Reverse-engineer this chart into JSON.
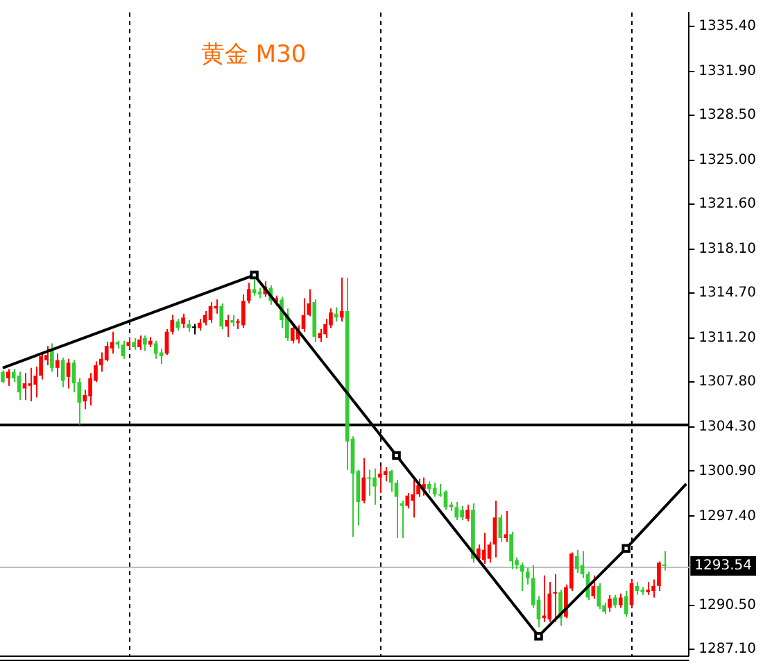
{
  "chart_data": {
    "type": "candlestick",
    "title": "黄金 M30",
    "categories": [
      null,
      null,
      null,
      null,
      null,
      null,
      null,
      null,
      null,
      null,
      null,
      null,
      null,
      null,
      null,
      null,
      null,
      null,
      null,
      null,
      null,
      null,
      null,
      null,
      null,
      null,
      null,
      null,
      null,
      null,
      null,
      null,
      null,
      null,
      null,
      null,
      null,
      null,
      null,
      null,
      null,
      null,
      null,
      null,
      null,
      null,
      null,
      null,
      null,
      null,
      null,
      null,
      null,
      null,
      null,
      null,
      null,
      null,
      null,
      null,
      null,
      null,
      null,
      null,
      null,
      null,
      null,
      null,
      null,
      null,
      null,
      null,
      null,
      null,
      null,
      null,
      null,
      null,
      null,
      null,
      null,
      null,
      null,
      null,
      null,
      null,
      null,
      null,
      null,
      null,
      null,
      null,
      null,
      null,
      null,
      null,
      null,
      null,
      null,
      null,
      null,
      null,
      null,
      null,
      null,
      null,
      null,
      null,
      null,
      null,
      null,
      null,
      null,
      null,
      null,
      null,
      null,
      null,
      null,
      null,
      null,
      null,
      null,
      null,
      null,
      null
    ],
    "ohlc": [
      [
        1308.6,
        1308.7,
        1307.7,
        1307.8
      ],
      [
        1308.1,
        1308.8,
        1307.5,
        1308.6
      ],
      [
        1308.6,
        1308.8,
        1307.8,
        1308.1
      ],
      [
        1308.3,
        1308.6,
        1306.4,
        1307.0
      ],
      [
        1307.3,
        1308.5,
        1306.4,
        1307.7
      ],
      [
        1307.5,
        1308.9,
        1306.3,
        1307.7
      ],
      [
        1307.6,
        1309.0,
        1306.6,
        1308.3
      ],
      [
        1308.3,
        1310.1,
        1308.0,
        1309.8
      ],
      [
        1309.5,
        1310.6,
        1309.1,
        1309.9
      ],
      [
        1310.2,
        1310.8,
        1308.6,
        1308.9
      ],
      [
        1308.9,
        1310.0,
        1308.2,
        1309.5
      ],
      [
        1309.5,
        1309.7,
        1307.4,
        1307.9
      ],
      [
        1308.2,
        1309.6,
        1307.3,
        1309.3
      ],
      [
        1309.3,
        1309.5,
        1307.0,
        1307.7
      ],
      [
        1307.8,
        1308.1,
        1304.5,
        1306.2
      ],
      [
        1306.3,
        1307.2,
        1305.7,
        1306.8
      ],
      [
        1306.7,
        1308.5,
        1306.0,
        1308.1
      ],
      [
        1307.9,
        1309.4,
        1307.8,
        1309.1
      ],
      [
        1309.1,
        1310.1,
        1308.6,
        1309.6
      ],
      [
        1309.5,
        1310.9,
        1309.4,
        1310.6
      ],
      [
        1310.4,
        1311.7,
        1310.0,
        1310.9
      ],
      [
        1310.9,
        1311.0,
        1310.4,
        1310.7
      ],
      [
        1310.7,
        1311.0,
        1309.6,
        1309.8
      ],
      [
        1310.6,
        1311.2,
        1310.4,
        1310.9
      ],
      [
        1310.9,
        1311.2,
        1310.3,
        1310.5
      ],
      [
        1310.5,
        1311.4,
        1310.3,
        1311.1
      ],
      [
        1311.2,
        1311.4,
        1310.2,
        1310.7
      ],
      [
        1310.7,
        1311.3,
        1310.5,
        1311.0
      ],
      [
        1310.8,
        1311.0,
        1309.6,
        1310.0
      ],
      [
        1310.1,
        1310.4,
        1309.2,
        1309.8
      ],
      [
        1310.0,
        1311.9,
        1309.9,
        1311.7
      ],
      [
        1311.7,
        1313.0,
        1311.5,
        1312.6
      ],
      [
        1312.5,
        1312.7,
        1311.8,
        1312.0
      ],
      [
        1312.3,
        1313.1,
        1312.0,
        1312.8
      ],
      [
        1312.3,
        1312.6,
        1311.7,
        1312.0
      ],
      [
        1312.0,
        1312.3,
        1311.5,
        1312.0
      ],
      [
        1312.0,
        1312.7,
        1311.8,
        1312.4
      ],
      [
        1312.4,
        1313.3,
        1312.2,
        1313.0
      ],
      [
        1312.6,
        1314.0,
        1312.4,
        1313.7
      ],
      [
        1313.5,
        1314.2,
        1313.1,
        1313.7
      ],
      [
        1313.7,
        1313.9,
        1311.9,
        1312.1
      ],
      [
        1312.1,
        1313.0,
        1311.3,
        1312.6
      ],
      [
        1312.6,
        1313.0,
        1312.1,
        1312.4
      ],
      [
        1312.4,
        1312.7,
        1311.9,
        1312.5
      ],
      [
        1312.2,
        1314.6,
        1312.0,
        1314.1
      ],
      [
        1314.1,
        1315.5,
        1313.9,
        1315.0
      ],
      [
        1315.0,
        1315.8,
        1314.5,
        1314.7
      ],
      [
        1314.8,
        1315.1,
        1314.3,
        1314.6
      ],
      [
        1314.6,
        1315.6,
        1314.4,
        1315.2
      ],
      [
        1315.1,
        1315.3,
        1313.8,
        1314.1
      ],
      [
        1314.0,
        1314.5,
        1313.7,
        1314.3
      ],
      [
        1314.2,
        1314.4,
        1312.0,
        1312.6
      ],
      [
        1313.1,
        1313.5,
        1311.0,
        1311.2
      ],
      [
        1311.0,
        1312.3,
        1310.8,
        1312.0
      ],
      [
        1311.1,
        1312.2,
        1310.8,
        1311.8
      ],
      [
        1311.9,
        1314.3,
        1311.7,
        1313.0
      ],
      [
        1313.0,
        1315.0,
        1312.9,
        1313.9
      ],
      [
        1314.0,
        1314.2,
        1310.9,
        1311.3
      ],
      [
        1311.2,
        1311.9,
        1310.9,
        1311.6
      ],
      [
        1311.5,
        1312.7,
        1311.2,
        1312.3
      ],
      [
        1312.2,
        1313.5,
        1312.0,
        1313.2
      ],
      [
        1313.1,
        1313.6,
        1312.5,
        1312.8
      ],
      [
        1312.8,
        1315.9,
        1312.5,
        1313.3
      ],
      [
        1313.3,
        1315.9,
        1301.0,
        1303.2
      ],
      [
        1303.4,
        1303.6,
        1295.8,
        1300.7
      ],
      [
        1300.9,
        1301.0,
        1296.7,
        1298.5
      ],
      [
        1298.6,
        1301.9,
        1298.4,
        1300.4
      ],
      [
        1300.4,
        1301.0,
        1299.0,
        1300.3
      ],
      [
        1300.4,
        1301.1,
        1298.3,
        1299.7
      ],
      [
        1300.4,
        1301.3,
        1299.2,
        1300.7
      ],
      [
        1300.6,
        1301.2,
        1300.1,
        1300.9
      ],
      [
        1300.9,
        1301.0,
        1299.3,
        1300.0
      ],
      [
        1300.0,
        1300.2,
        1295.7,
        1298.9
      ],
      [
        1298.4,
        1298.6,
        1295.7,
        1298.2
      ],
      [
        1298.2,
        1299.2,
        1298.0,
        1299.0
      ],
      [
        1298.6,
        1300.2,
        1297.3,
        1299.1
      ],
      [
        1299.1,
        1300.3,
        1298.9,
        1299.8
      ],
      [
        1299.5,
        1300.4,
        1299.0,
        1299.9
      ],
      [
        1299.9,
        1300.1,
        1299.2,
        1299.5
      ],
      [
        1299.6,
        1300.0,
        1298.9,
        1299.1
      ],
      [
        1299.1,
        1299.9,
        1298.9,
        1299.0
      ],
      [
        1299.3,
        1299.4,
        1297.9,
        1298.1
      ],
      [
        1298.3,
        1298.5,
        1297.8,
        1298.1
      ],
      [
        1298.1,
        1298.5,
        1297.1,
        1297.3
      ],
      [
        1297.9,
        1298.2,
        1297.1,
        1297.3
      ],
      [
        1297.2,
        1298.3,
        1297.0,
        1297.9
      ],
      [
        1297.9,
        1298.4,
        1293.8,
        1294.1
      ],
      [
        1294.1,
        1295.2,
        1293.8,
        1294.9
      ],
      [
        1294.0,
        1296.1,
        1293.7,
        1294.8
      ],
      [
        1294.1,
        1295.4,
        1293.8,
        1295.2
      ],
      [
        1295.2,
        1298.6,
        1294.2,
        1297.3
      ],
      [
        1297.3,
        1297.5,
        1295.4,
        1295.7
      ],
      [
        1295.7,
        1297.8,
        1295.4,
        1296.0
      ],
      [
        1296.0,
        1296.2,
        1293.3,
        1293.9
      ],
      [
        1294.0,
        1294.2,
        1293.3,
        1293.6
      ],
      [
        1293.6,
        1293.8,
        1291.6,
        1293.1
      ],
      [
        1293.1,
        1293.4,
        1292.1,
        1292.6
      ],
      [
        1292.6,
        1293.6,
        1290.3,
        1290.5
      ],
      [
        1290.9,
        1291.2,
        1288.8,
        1289.4
      ],
      [
        1289.5,
        1292.8,
        1289.2,
        1289.7
      ],
      [
        1289.4,
        1292.3,
        1289.2,
        1291.4
      ],
      [
        1291.4,
        1292.9,
        1289.2,
        1291.5
      ],
      [
        1291.5,
        1291.7,
        1288.9,
        1289.5
      ],
      [
        1289.6,
        1292.1,
        1289.5,
        1291.9
      ],
      [
        1291.8,
        1294.6,
        1291.6,
        1294.5
      ],
      [
        1294.3,
        1294.8,
        1293.0,
        1293.3
      ],
      [
        1293.6,
        1294.7,
        1292.6,
        1292.9
      ],
      [
        1292.9,
        1293.1,
        1290.9,
        1291.1
      ],
      [
        1291.2,
        1292.8,
        1291.0,
        1292.0
      ],
      [
        1292.0,
        1292.2,
        1290.2,
        1290.4
      ],
      [
        1290.5,
        1290.7,
        1289.8,
        1290.0
      ],
      [
        1290.3,
        1291.3,
        1290.0,
        1291.0
      ],
      [
        1291.1,
        1291.3,
        1290.3,
        1290.5
      ],
      [
        1290.5,
        1291.4,
        1290.3,
        1291.1
      ],
      [
        1291.2,
        1291.6,
        1289.6,
        1289.8
      ],
      [
        1290.5,
        1292.5,
        1290.3,
        1292.2
      ],
      [
        1292.0,
        1292.3,
        1291.3,
        1291.6
      ],
      [
        1291.7,
        1291.9,
        1291.3,
        1291.5
      ],
      [
        1291.5,
        1292.3,
        1291.3,
        1291.7
      ],
      [
        1291.6,
        1292.5,
        1291.1,
        1292.0
      ],
      [
        1292.0,
        1293.9,
        1291.6,
        1293.8
      ],
      [
        1293.6,
        1294.7,
        1293.2,
        1293.54
      ],
      null,
      null,
      null,
      null
    ],
    "colors": [
      "#32cd32",
      "#ff0000",
      "#32cd32",
      "#32cd32",
      "#ff0000",
      "#ff0000",
      "#ff0000",
      "#ff0000",
      "#ff0000",
      "#32cd32",
      "#ff0000",
      "#32cd32",
      "#ff0000",
      "#32cd32",
      "#32cd32",
      "#ff0000",
      "#ff0000",
      "#ff0000",
      "#ff0000",
      "#ff0000",
      "#ff0000",
      "#32cd32",
      "#32cd32",
      "#ff0000",
      "#32cd32",
      "#ff0000",
      "#32cd32",
      "#ff0000",
      "#32cd32",
      "#32cd32",
      "#ff0000",
      "#ff0000",
      "#32cd32",
      "#ff0000",
      "#32cd32",
      "#000000",
      "#ff0000",
      "#ff0000",
      "#ff0000",
      "#ff0000",
      "#32cd32",
      "#ff0000",
      "#32cd32",
      "#ff0000",
      "#ff0000",
      "#ff0000",
      "#32cd32",
      "#32cd32",
      "#ff0000",
      "#32cd32",
      "#ff0000",
      "#32cd32",
      "#32cd32",
      "#ff0000",
      "#ff0000",
      "#ff0000",
      "#ff0000",
      "#32cd32",
      "#ff0000",
      "#ff0000",
      "#ff0000",
      "#32cd32",
      "#ff0000",
      "#32cd32",
      "#32cd32",
      "#32cd32",
      "#ff0000",
      "#32cd32",
      "#32cd32",
      "#ff0000",
      "#ff0000",
      "#32cd32",
      "#32cd32",
      "#32cd32",
      "#ff0000",
      "#ff0000",
      "#ff0000",
      "#ff0000",
      "#32cd32",
      "#32cd32",
      "#32cd32",
      "#32cd32",
      "#32cd32",
      "#32cd32",
      "#32cd32",
      "#ff0000",
      "#32cd32",
      "#ff0000",
      "#ff0000",
      "#ff0000",
      "#ff0000",
      "#32cd32",
      "#ff0000",
      "#32cd32",
      "#32cd32",
      "#32cd32",
      "#32cd32",
      "#32cd32",
      "#32cd32",
      "#ff0000",
      "#ff0000",
      "#ff0000",
      "#32cd32",
      "#ff0000",
      "#ff0000",
      "#32cd32",
      "#32cd32",
      "#32cd32",
      "#ff0000",
      "#32cd32",
      "#32cd32",
      "#ff0000",
      "#32cd32",
      "#ff0000",
      "#32cd32",
      "#ff0000",
      "#32cd32",
      "#32cd32",
      "#ff0000",
      "#ff0000",
      "#ff0000",
      "#32cd32",
      null,
      null,
      null,
      null
    ],
    "series": [
      {
        "type": "line",
        "color": "#000000",
        "marker": "square",
        "values": [
          1308.9,
          null,
          null,
          null,
          null,
          null,
          null,
          null,
          null,
          null,
          null,
          null,
          null,
          null,
          null,
          null,
          null,
          null,
          null,
          null,
          null,
          null,
          null,
          null,
          null,
          null,
          null,
          null,
          null,
          null,
          null,
          null,
          null,
          null,
          null,
          null,
          null,
          null,
          null,
          null,
          null,
          null,
          null,
          null,
          null,
          null,
          1316.1,
          null,
          null,
          null,
          null,
          null,
          null,
          null,
          null,
          null,
          null,
          null,
          null,
          null,
          null,
          null,
          null,
          null,
          null,
          null,
          null,
          null,
          null,
          null,
          null,
          null,
          1302.1,
          null,
          null,
          null,
          null,
          null,
          null,
          null,
          null,
          null,
          null,
          null,
          null,
          null,
          null,
          null,
          null,
          null,
          null,
          null,
          null,
          null,
          null,
          null,
          null,
          null,
          1288.1,
          null,
          null,
          null,
          null,
          null,
          null,
          null,
          null,
          null,
          null,
          null,
          null,
          null,
          null,
          null,
          1294.9,
          null,
          null,
          null,
          null,
          null,
          null,
          null,
          null,
          null,
          null,
          1299.9
        ]
      }
    ],
    "ylim": [
      1286.6,
      1336.45
    ],
    "yticks": [
      {
        "value": 1335.4,
        "label": "1335.40"
      },
      {
        "value": 1331.9,
        "label": "1331.90"
      },
      {
        "value": 1328.5,
        "label": "1328.50"
      },
      {
        "value": 1325.0,
        "label": "1325.00"
      },
      {
        "value": 1321.6,
        "label": "1321.60"
      },
      {
        "value": 1318.1,
        "label": "1318.10"
      },
      {
        "value": 1314.7,
        "label": "1314.70"
      },
      {
        "value": 1311.2,
        "label": "1311.20"
      },
      {
        "value": 1307.8,
        "label": "1307.80"
      },
      {
        "value": 1304.3,
        "label": "1304.30"
      },
      {
        "value": 1300.9,
        "label": "1300.90"
      },
      {
        "value": 1297.4,
        "label": "1297.40"
      },
      {
        "value": 1290.5,
        "label": "1290.50"
      },
      {
        "value": 1287.1,
        "label": "1287.10"
      }
    ],
    "ref_lines": [
      {
        "axis": "y",
        "value": 1304.5,
        "color": "#000000"
      },
      {
        "axis": "y",
        "value": 1293.54,
        "label": "1293.54",
        "color": "#c0c0c0"
      }
    ],
    "tick_labels": "y"
  }
}
